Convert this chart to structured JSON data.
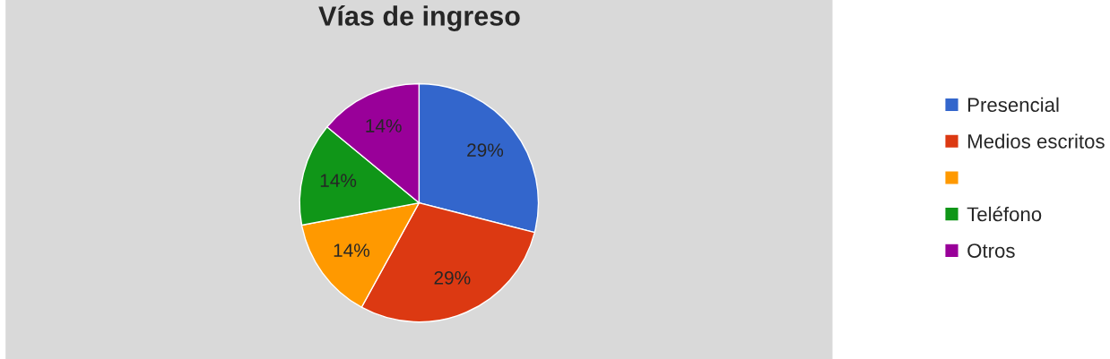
{
  "chart_data": {
    "type": "pie",
    "title": "Vías de ingreso",
    "categories": [
      "Presencial",
      "Medios escritos",
      null,
      "Teléfono",
      "Otros"
    ],
    "values": [
      29,
      29,
      14,
      14,
      14
    ],
    "colors": [
      "#3366cc",
      "#dc3912",
      "#ff9900",
      "#109618",
      "#990099"
    ],
    "value_labels": [
      "29%",
      "29%",
      "14%",
      "14%",
      "14%"
    ],
    "legend": "right"
  }
}
